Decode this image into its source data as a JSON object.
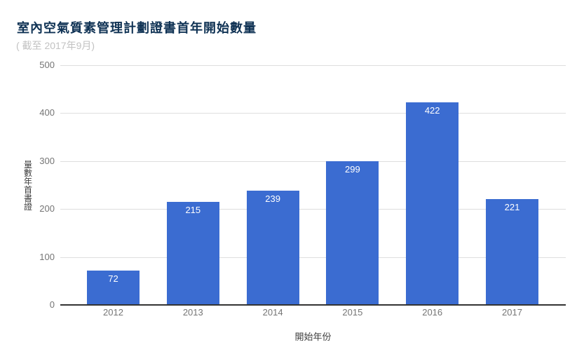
{
  "chart_data": {
    "type": "bar",
    "title": "室內空氣質素管理計劃證書首年開始數量",
    "subtitle": "( 截至 2017年9月)",
    "categories": [
      "2012",
      "2013",
      "2014",
      "2015",
      "2016",
      "2017"
    ],
    "values": [
      72,
      215,
      239,
      299,
      422,
      221
    ],
    "xlabel": "開始年份",
    "ylabel": "證書首年數量",
    "ylabel_display_top_to_bottom": "量數年首書證",
    "ylim": [
      0,
      500
    ],
    "y_ticks": [
      0,
      100,
      200,
      300,
      400,
      500
    ],
    "grid": true,
    "legend": "none",
    "value_labels": "inside-top",
    "colors": {
      "bar": "#3B6CD1",
      "value_label": "#FFFFFF",
      "title": "#0F3254",
      "subtitle": "#C2C2C2",
      "tick_label": "#757575",
      "axis_title": "#3E3E3E",
      "gridline": "#DEDEDE",
      "baseline": "#333333"
    }
  }
}
